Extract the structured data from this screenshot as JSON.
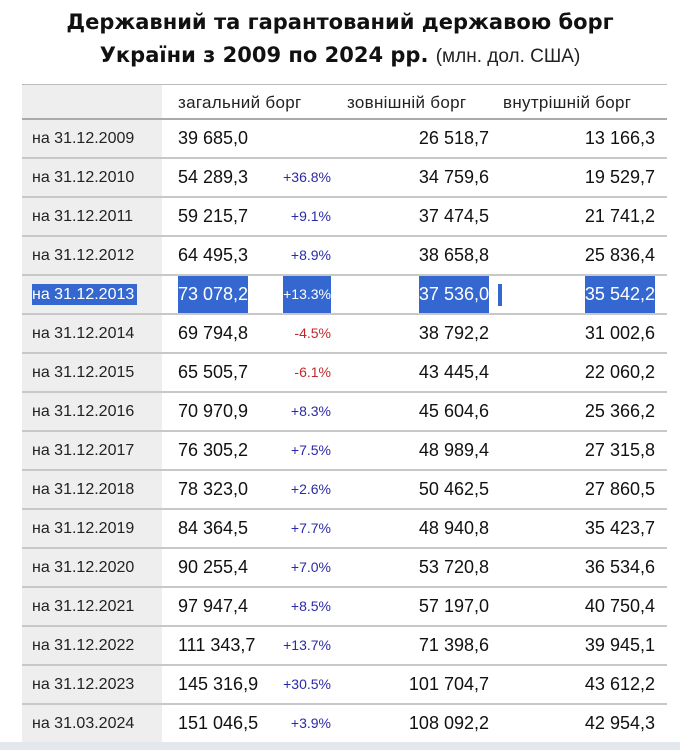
{
  "title": {
    "line1": "Державний та гарантований державою борг",
    "line2": "України з 2009 по 2024 рр.",
    "unit": "(млн. дол. США)"
  },
  "headers": {
    "total": "загальний борг",
    "external": "зовнішній борг",
    "internal": "внутрішній борг"
  },
  "selected_row": "на 31.12.2013",
  "colors": {
    "positive": "#2a2aa8",
    "negative": "#c0282d",
    "selection": "#3468d0"
  },
  "rows": [
    {
      "date": "на 31.12.2009",
      "total": "39 685,0",
      "change": "",
      "external": "26 518,7",
      "internal": "13 166,3"
    },
    {
      "date": "на 31.12.2010",
      "total": "54 289,3",
      "change": "+36.8%",
      "external": "34 759,6",
      "internal": "19 529,7"
    },
    {
      "date": "на 31.12.2011",
      "total": "59 215,7",
      "change": "+9.1%",
      "external": "37 474,5",
      "internal": "21 741,2"
    },
    {
      "date": "на 31.12.2012",
      "total": "64 495,3",
      "change": "+8.9%",
      "external": "38 658,8",
      "internal": "25 836,4"
    },
    {
      "date": "на 31.12.2013",
      "total": "73 078,2",
      "change": "+13.3%",
      "external": "37 536,0",
      "internal": "35 542,2"
    },
    {
      "date": "на 31.12.2014",
      "total": "69 794,8",
      "change": "-4.5%",
      "external": "38 792,2",
      "internal": "31 002,6"
    },
    {
      "date": "на 31.12.2015",
      "total": "65 505,7",
      "change": "-6.1%",
      "external": "43 445,4",
      "internal": "22 060,2"
    },
    {
      "date": "на 31.12.2016",
      "total": "70 970,9",
      "change": "+8.3%",
      "external": "45 604,6",
      "internal": "25 366,2"
    },
    {
      "date": "на 31.12.2017",
      "total": "76 305,2",
      "change": "+7.5%",
      "external": "48 989,4",
      "internal": "27 315,8"
    },
    {
      "date": "на 31.12.2018",
      "total": "78 323,0",
      "change": "+2.6%",
      "external": "50 462,5",
      "internal": "27 860,5"
    },
    {
      "date": "на 31.12.2019",
      "total": "84 364,5",
      "change": "+7.7%",
      "external": "48 940,8",
      "internal": "35 423,7"
    },
    {
      "date": "на 31.12.2020",
      "total": "90 255,4",
      "change": "+7.0%",
      "external": "53 720,8",
      "internal": "36 534,6"
    },
    {
      "date": "на 31.12.2021",
      "total": "97 947,4",
      "change": "+8.5%",
      "external": "57 197,0",
      "internal": "40 750,4"
    },
    {
      "date": "на 31.12.2022",
      "total": "111 343,7",
      "change": "+13.7%",
      "external": "71 398,6",
      "internal": "39 945,1"
    },
    {
      "date": "на 31.12.2023",
      "total": "145 316,9",
      "change": "+30.5%",
      "external": "101 704,7",
      "internal": "43 612,2"
    },
    {
      "date": "на 31.03.2024",
      "total": "151 046,5",
      "change": "+3.9%",
      "external": "108 092,2",
      "internal": "42 954,3"
    }
  ]
}
